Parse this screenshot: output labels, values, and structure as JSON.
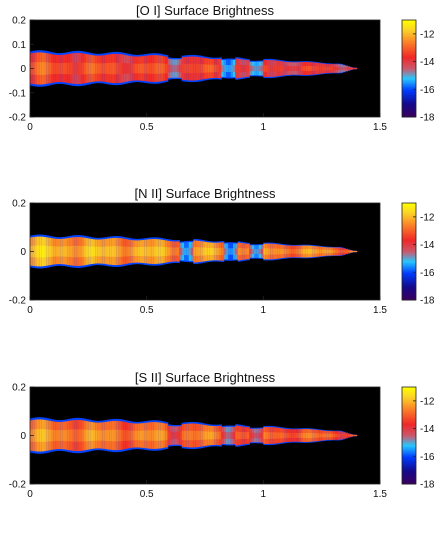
{
  "chart_data": [
    {
      "type": "heatmap",
      "title": "[O I] Surface Brightness",
      "xlim": [
        0,
        1.5
      ],
      "ylim": [
        -0.2,
        0.2
      ],
      "xticks": [
        "0",
        "0.5",
        "1",
        "1.5"
      ],
      "yticks": [
        "0.2",
        "0.1",
        "0",
        "-0.1",
        "-0.2"
      ],
      "colorbar": {
        "range": [
          -18,
          -11
        ],
        "ticks": [
          "-12",
          "-14",
          "-16",
          "-18"
        ]
      },
      "jet": {
        "x_end": 1.4,
        "half_width_max": 0.07,
        "core_value": -13.5,
        "edge_value": -16
      },
      "knots": [
        {
          "x": 0.62,
          "value": -15.0
        },
        {
          "x": 0.85,
          "value": -16.0
        },
        {
          "x": 0.97,
          "value": -15.5
        }
      ],
      "background_color": "#000000"
    },
    {
      "type": "heatmap",
      "title": "[N II] Surface Brightness",
      "xlim": [
        0,
        1.5
      ],
      "ylim": [
        -0.2,
        0.2
      ],
      "xticks": [
        "0",
        "0.5",
        "1",
        "1.5"
      ],
      "yticks": [
        "0.2",
        "0",
        "-0.2"
      ],
      "colorbar": {
        "range": [
          -18,
          -11
        ],
        "ticks": [
          "-12",
          "-14",
          "-16",
          "-18"
        ]
      },
      "jet": {
        "x_end": 1.4,
        "half_width_max": 0.065,
        "core_value": -12.3,
        "edge_value": -16
      },
      "knots": [
        {
          "x": 0.67,
          "value": -16.0
        },
        {
          "x": 0.86,
          "value": -16.2
        },
        {
          "x": 0.97,
          "value": -15.8
        }
      ],
      "background_color": "#000000"
    },
    {
      "type": "heatmap",
      "title": "[S II] Surface Brightness",
      "xlim": [
        0,
        1.5
      ],
      "ylim": [
        -0.2,
        0.2
      ],
      "xticks": [
        "0",
        "0.5",
        "1",
        "1.5"
      ],
      "yticks": [
        "0.2",
        "0",
        "-0.2"
      ],
      "colorbar": {
        "range": [
          -18,
          -11
        ],
        "ticks": [
          "-12",
          "-14",
          "-16",
          "-18"
        ]
      },
      "jet": {
        "x_end": 1.4,
        "half_width_max": 0.07,
        "core_value": -12.8,
        "edge_value": -16
      },
      "knots": [
        {
          "x": 0.62,
          "value": -14.5
        },
        {
          "x": 0.85,
          "value": -15.0
        },
        {
          "x": 0.97,
          "value": -14.8
        }
      ],
      "background_color": "#000000"
    }
  ]
}
